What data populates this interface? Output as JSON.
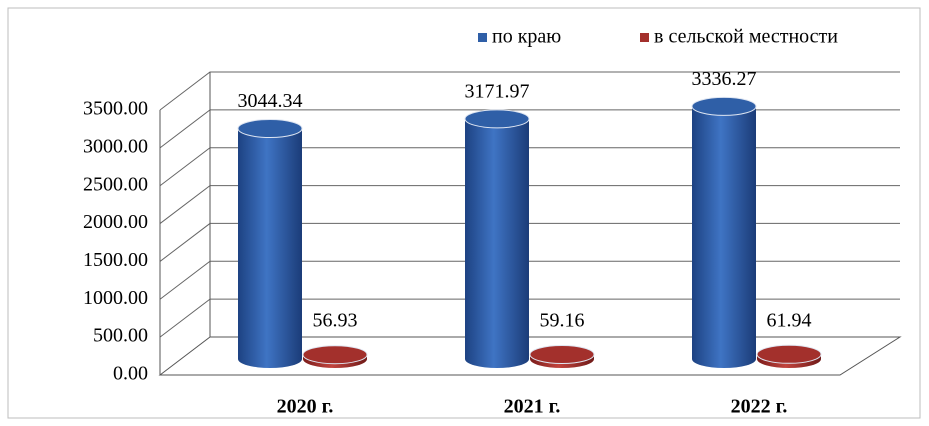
{
  "chart_data": {
    "type": "bar3d",
    "categories": [
      "2020 г.",
      "2021 г.",
      "2022 г."
    ],
    "series": [
      {
        "name": "по краю",
        "color": "#2f5fa7",
        "values": [
          3044.34,
          3171.97,
          3336.27
        ]
      },
      {
        "name": "в сельской местности",
        "color": "#a3302c",
        "values": [
          56.93,
          59.16,
          61.94
        ]
      }
    ],
    "ylim": [
      0,
      3500
    ],
    "yticks": [
      {
        "value": 0,
        "label": "0.00"
      },
      {
        "value": 500,
        "label": "500.00"
      },
      {
        "value": 1000,
        "label": "1000.00"
      },
      {
        "value": 1500,
        "label": "1500.00"
      },
      {
        "value": 2000,
        "label": "2000.00"
      },
      {
        "value": 2500,
        "label": "2500.00"
      },
      {
        "value": 3000,
        "label": "3000.00"
      },
      {
        "value": 3500,
        "label": "3500.00"
      }
    ],
    "grid": true,
    "legend": "top"
  }
}
